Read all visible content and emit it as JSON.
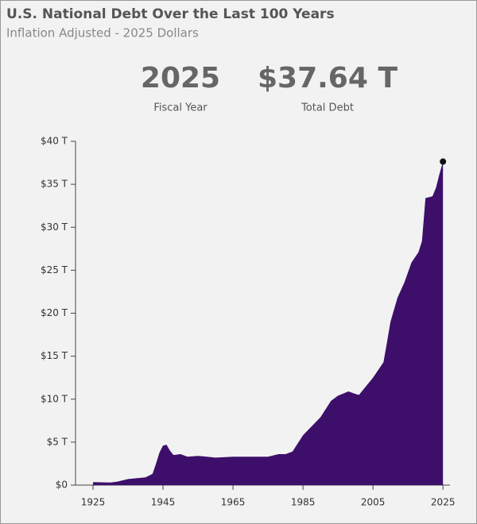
{
  "header": {
    "title": "U.S. National Debt Over the Last 100 Years",
    "subtitle": "Inflation Adjusted - 2025 Dollars"
  },
  "stats": [
    {
      "value": "2025",
      "label": "Fiscal Year"
    },
    {
      "value": "$37.64 T",
      "label": "Total Debt"
    }
  ],
  "chart_data": {
    "type": "area",
    "x": [
      1925,
      1930,
      1932,
      1935,
      1940,
      1942,
      1943,
      1944,
      1945,
      1946,
      1947,
      1948,
      1950,
      1952,
      1955,
      1960,
      1965,
      1970,
      1975,
      1978,
      1980,
      1982,
      1985,
      1990,
      1993,
      1995,
      1998,
      2000,
      2001,
      2003,
      2005,
      2008,
      2009,
      2010,
      2012,
      2014,
      2016,
      2018,
      2019,
      2020,
      2021,
      2022,
      2023,
      2024,
      2025
    ],
    "series": [
      {
        "name": "Total Debt",
        "color": "#3d0f6b",
        "values": [
          0.35,
          0.3,
          0.4,
          0.7,
          0.9,
          1.3,
          2.5,
          3.8,
          4.6,
          4.7,
          4.0,
          3.5,
          3.6,
          3.3,
          3.4,
          3.2,
          3.3,
          3.3,
          3.3,
          3.6,
          3.6,
          3.9,
          5.8,
          7.9,
          9.8,
          10.4,
          10.9,
          10.6,
          10.5,
          11.5,
          12.5,
          14.3,
          16.6,
          19.0,
          21.8,
          23.6,
          25.9,
          27.1,
          28.4,
          33.4,
          33.5,
          33.6,
          34.6,
          36.2,
          37.64
        ]
      }
    ],
    "xlim": [
      1920,
      2027
    ],
    "xticks": [
      1925,
      1945,
      1965,
      1985,
      2005,
      2025
    ],
    "ylim": [
      0,
      40
    ],
    "yticks": [
      {
        "value": 0,
        "label": "$0"
      },
      {
        "value": 5,
        "label": "$5 T"
      },
      {
        "value": 10,
        "label": "$10 T"
      },
      {
        "value": 15,
        "label": "$15 T"
      },
      {
        "value": 20,
        "label": "$20 T"
      },
      {
        "value": 25,
        "label": "$25 T"
      },
      {
        "value": 30,
        "label": "$30 T"
      },
      {
        "value": 35,
        "label": "$35 T"
      },
      {
        "value": 40,
        "label": "$40 T"
      }
    ],
    "marker_color": "#111111"
  }
}
